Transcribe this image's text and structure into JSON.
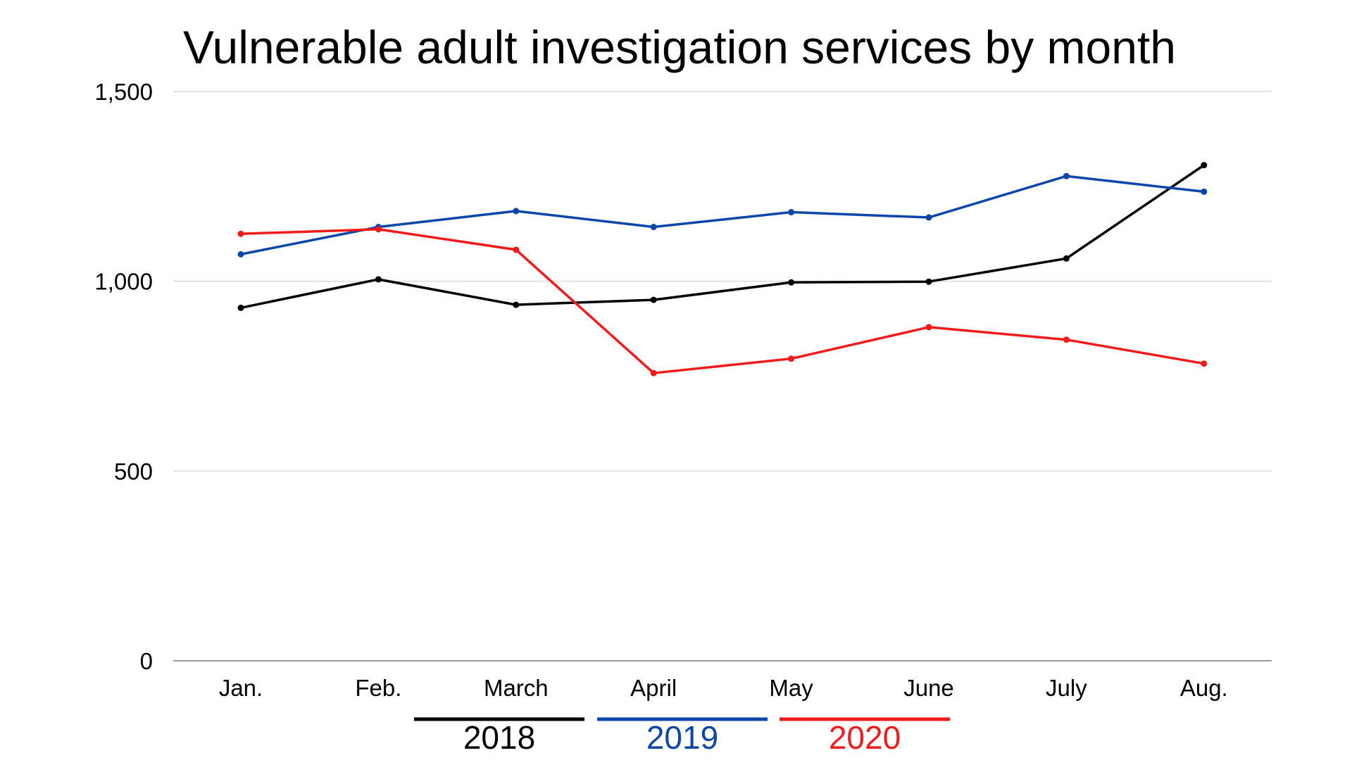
{
  "chart_data": {
    "type": "line",
    "title": "Vulnerable adult investigation services by month",
    "xlabel": "",
    "ylabel": "",
    "categories": [
      "Jan.",
      "Feb.",
      "March",
      "April",
      "May",
      "June",
      "July",
      "Aug."
    ],
    "ylim": [
      0,
      1500
    ],
    "yticks": [
      0,
      500,
      1000,
      1500
    ],
    "ytick_labels": [
      "0",
      "500",
      "1,000",
      "1,500"
    ],
    "grid": true,
    "legend_placement": "bottom",
    "series": [
      {
        "name": "2018",
        "color": "#000000",
        "values": [
          930,
          1005,
          938,
          951,
          997,
          999,
          1060,
          1306
        ]
      },
      {
        "name": "2019",
        "color": "#0B46A8",
        "values": [
          1071,
          1143,
          1185,
          1143,
          1182,
          1168,
          1277,
          1236
        ]
      },
      {
        "name": "2020",
        "color": "#F21B1B",
        "values": [
          1125,
          1137,
          1083,
          758,
          796,
          879,
          846,
          783
        ]
      }
    ]
  }
}
